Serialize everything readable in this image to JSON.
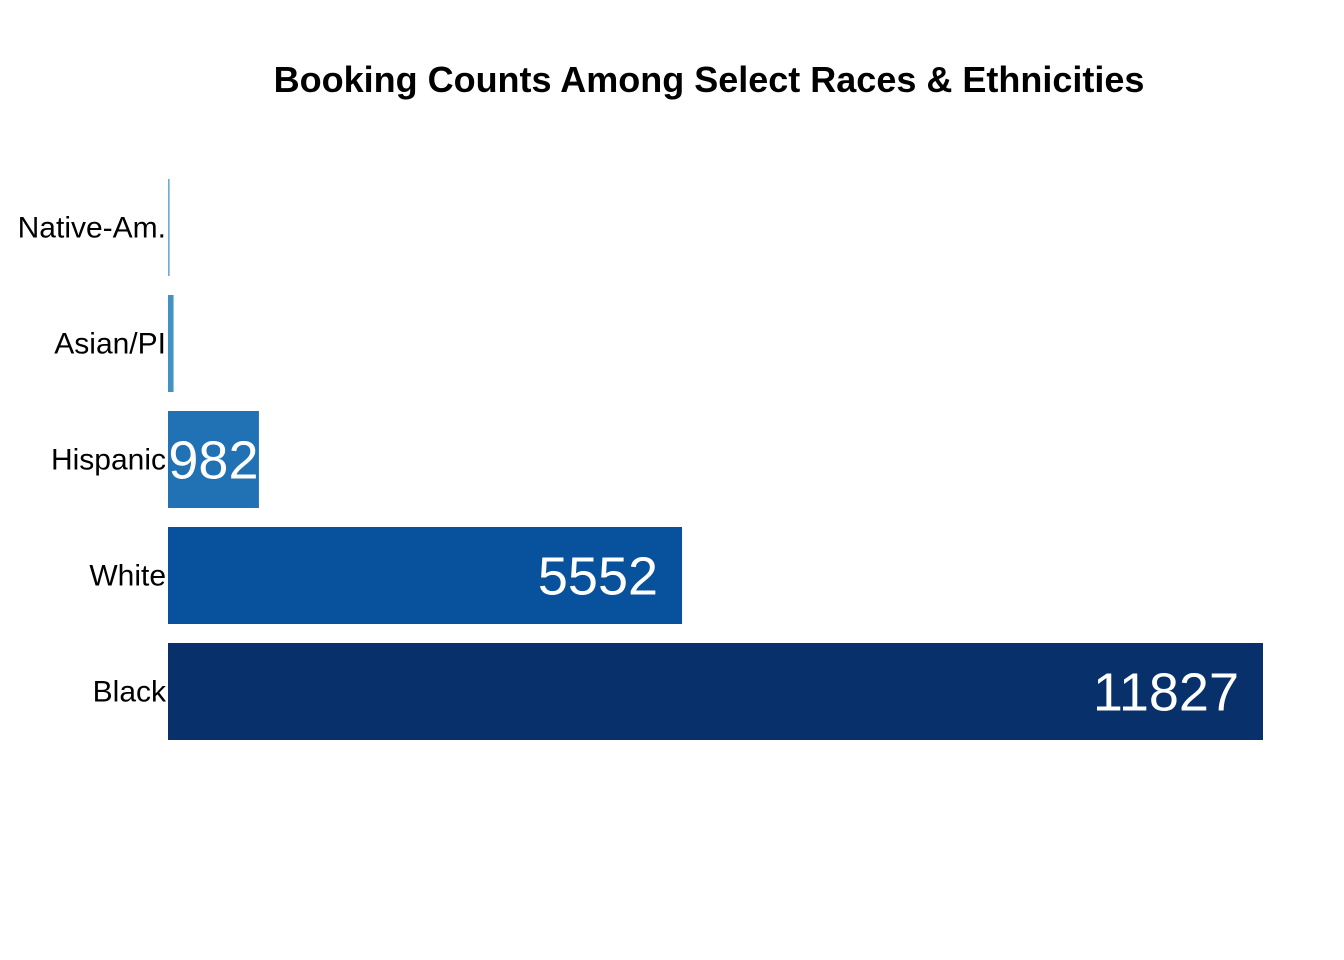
{
  "chart_data": {
    "type": "bar",
    "orientation": "horizontal",
    "title": "Booking Counts Among Select Races & Ethnicities",
    "xlabel": "",
    "ylabel": "",
    "categories": [
      "Native-Am.",
      "Asian/PI",
      "Hispanic",
      "White",
      "Black"
    ],
    "values": [
      18,
      60,
      982,
      5552,
      11827
    ],
    "value_labels": [
      "",
      "",
      "982",
      "5552",
      "11827"
    ],
    "colors": [
      "#6baed6",
      "#4292c6",
      "#2171b5",
      "#08519c",
      "#08306b"
    ],
    "xlim": [
      0,
      11827
    ],
    "grid": false,
    "legend": "none"
  }
}
